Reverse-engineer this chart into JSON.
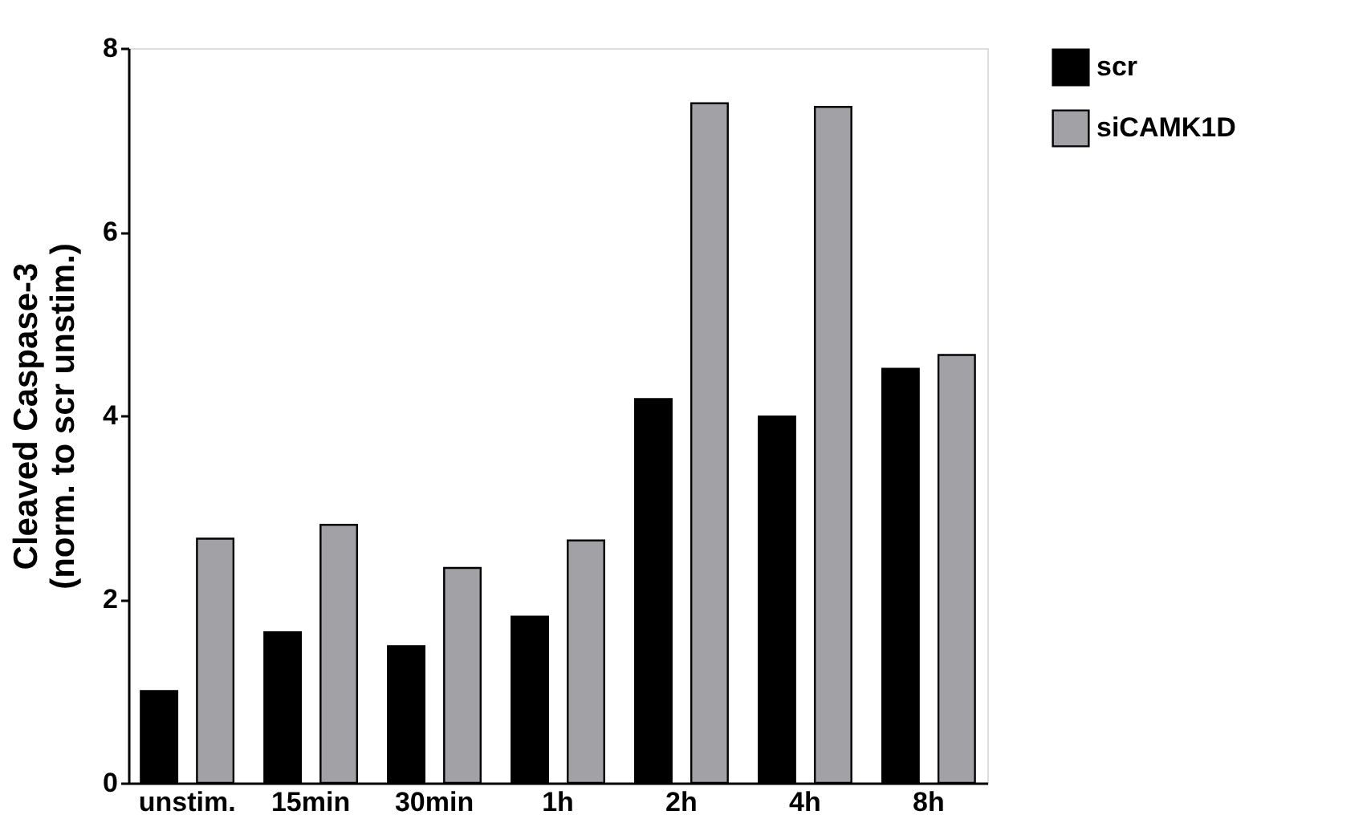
{
  "chart_data": {
    "type": "bar",
    "ylabel": "Cleaved Caspase-3\n(norm. to scr unstim.)",
    "categories": [
      "unstim.",
      "15min",
      "30min",
      "1h",
      "2h",
      "4h",
      "8h"
    ],
    "series": [
      {
        "name": "scr",
        "color": "#000000",
        "values": [
          1.0,
          1.64,
          1.49,
          1.81,
          4.18,
          3.99,
          4.51
        ]
      },
      {
        "name": "siCAMK1D",
        "color": "#a2a1a6",
        "values": [
          2.66,
          2.81,
          2.34,
          2.64,
          7.4,
          7.36,
          4.66
        ]
      }
    ],
    "ylim": [
      0,
      8
    ],
    "yticks": [
      0,
      2,
      4,
      6,
      8
    ],
    "grid": false,
    "legend": "top right"
  }
}
